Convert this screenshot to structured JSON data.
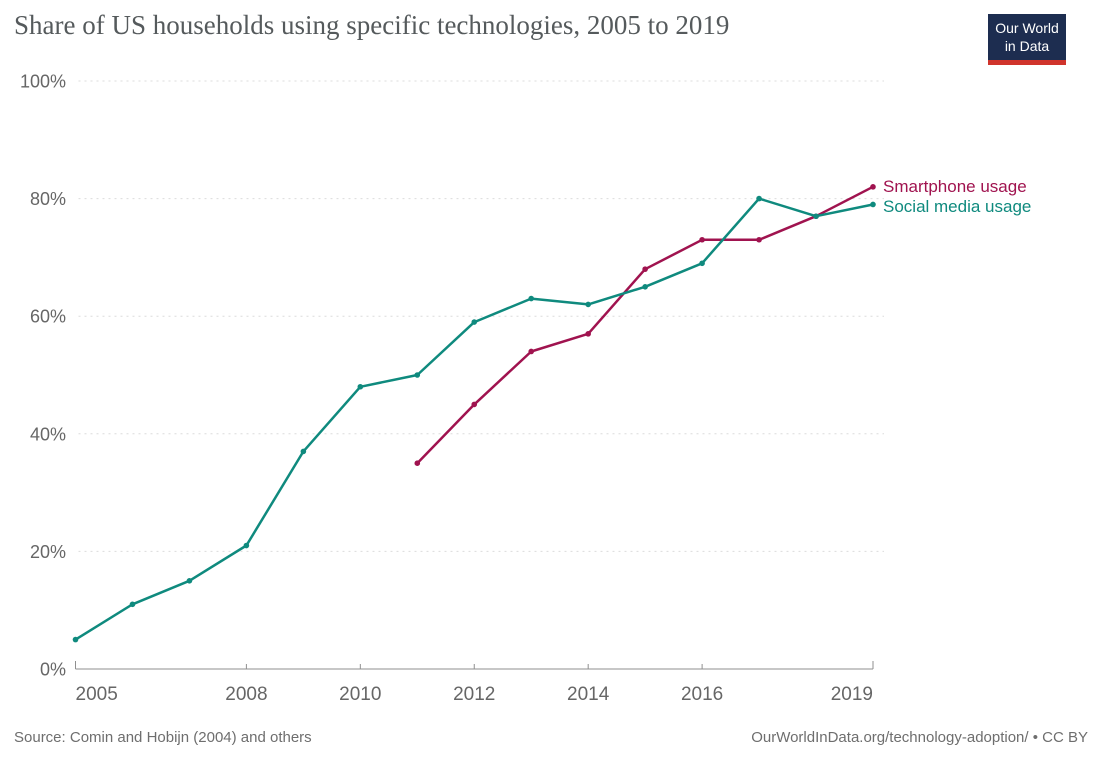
{
  "header": {
    "logo": {
      "line1": "Our World",
      "line2": "in Data",
      "bg_color": "#1D2D50",
      "accent_color": "#D0342C"
    }
  },
  "footer": {
    "source": "Source: Comin and Hobijn (2004) and others",
    "attribution": "OurWorldInData.org/technology-adoption/ • CC BY"
  },
  "chart_data": {
    "type": "line",
    "title": "Share of US households using specific technologies, 2005 to 2019",
    "xlabel": "",
    "ylabel": "",
    "xlim": [
      2005,
      2019
    ],
    "ylim": [
      0,
      100
    ],
    "x_ticks": [
      2005,
      2008,
      2010,
      2012,
      2014,
      2016,
      2019
    ],
    "y_ticks": [
      0,
      20,
      40,
      60,
      80,
      100
    ],
    "y_tick_suffix": "%",
    "grid": "horizontal-dashed",
    "legend_position": "labels-at-line-ends",
    "series": [
      {
        "name": "Smartphone usage",
        "color": "#A0134F",
        "x": [
          2011,
          2012,
          2013,
          2014,
          2015,
          2016,
          2017,
          2018,
          2019
        ],
        "values": [
          35,
          45,
          54,
          57,
          68,
          73,
          73,
          77,
          82
        ]
      },
      {
        "name": "Social media usage",
        "color": "#0F8A7E",
        "x": [
          2005,
          2006,
          2007,
          2008,
          2009,
          2010,
          2011,
          2012,
          2013,
          2014,
          2015,
          2016,
          2017,
          2018,
          2019
        ],
        "values": [
          5,
          11,
          15,
          21,
          37,
          48,
          50,
          59,
          63,
          62,
          65,
          69,
          80,
          77,
          79
        ]
      }
    ],
    "colors": {
      "axis": "#8f8f8f",
      "grid": "#dcdcdc",
      "tick_text": "#666666"
    }
  }
}
